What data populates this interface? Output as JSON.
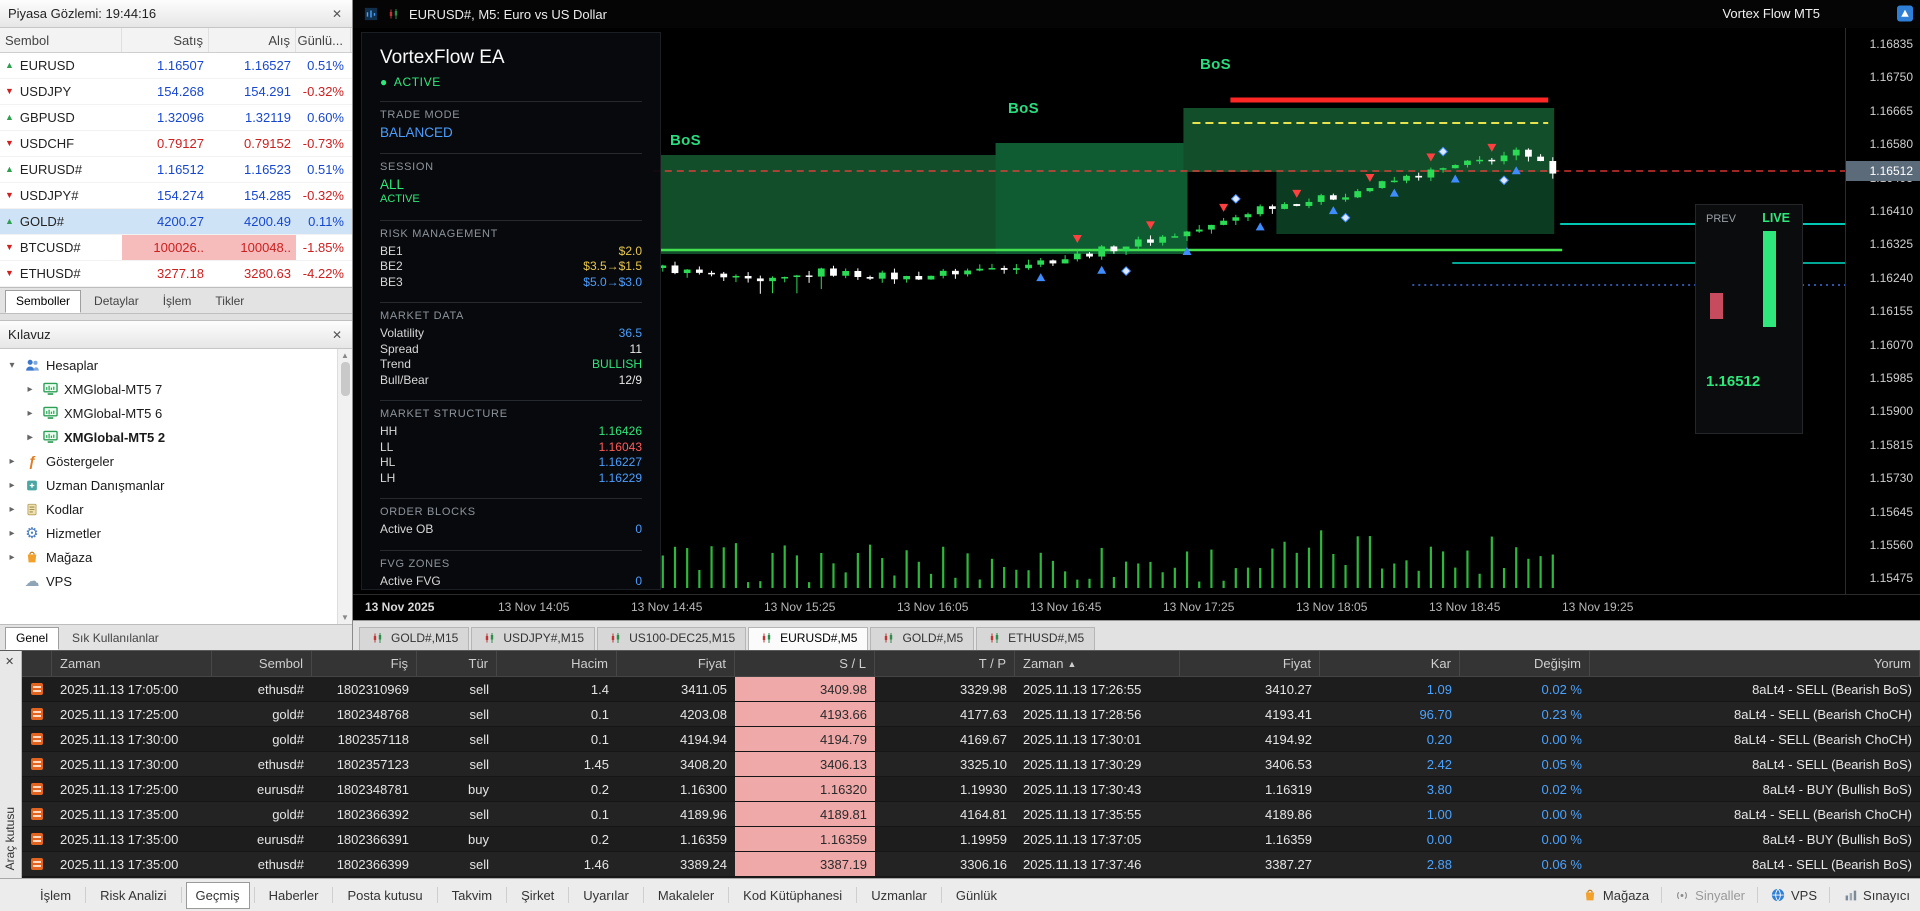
{
  "icons": {
    "close": "✕",
    "sort_asc": "▲",
    "tick_up": "▲",
    "tick_down": "▼",
    "expander_open": "▾",
    "expander_closed": "▸",
    "bullet": "●",
    "gear": "⚙",
    "cloud": "☁",
    "func": "ƒ",
    "scroll_up": "▲",
    "scroll_down": "▼"
  },
  "market_watch": {
    "title": "Piyasa Gözlemi: 19:44:16",
    "columns": [
      "Sembol",
      "Satış",
      "Alış",
      "Günlü..."
    ],
    "rows": [
      {
        "symbol": "EURUSD",
        "bid": "1.16507",
        "ask": "1.16527",
        "change": "0.51%",
        "dir": "up",
        "price_color": "blue",
        "change_color": "blue"
      },
      {
        "symbol": "USDJPY",
        "bid": "154.268",
        "ask": "154.291",
        "change": "-0.32%",
        "dir": "down",
        "price_color": "blue",
        "change_color": "red"
      },
      {
        "symbol": "GBPUSD",
        "bid": "1.32096",
        "ask": "1.32119",
        "change": "0.60%",
        "dir": "up",
        "price_color": "blue",
        "change_color": "blue"
      },
      {
        "symbol": "USDCHF",
        "bid": "0.79127",
        "ask": "0.79152",
        "change": "-0.73%",
        "dir": "down",
        "price_color": "red",
        "change_color": "red"
      },
      {
        "symbol": "EURUSD#",
        "bid": "1.16512",
        "ask": "1.16523",
        "change": "0.51%",
        "dir": "up",
        "price_color": "blue",
        "change_color": "blue"
      },
      {
        "symbol": "USDJPY#",
        "bid": "154.274",
        "ask": "154.285",
        "change": "-0.32%",
        "dir": "down",
        "price_color": "blue",
        "change_color": "red"
      },
      {
        "symbol": "GOLD#",
        "bid": "4200.27",
        "ask": "4200.49",
        "change": "0.11%",
        "dir": "up",
        "price_color": "blue",
        "change_color": "blue",
        "selected": true
      },
      {
        "symbol": "BTCUSD#",
        "bid": "100026..",
        "ask": "100048..",
        "change": "-1.85%",
        "dir": "down",
        "price_color": "red",
        "change_color": "red",
        "flash": true
      },
      {
        "symbol": "ETHUSD#",
        "bid": "3277.18",
        "ask": "3280.63",
        "change": "-4.22%",
        "dir": "down",
        "price_color": "red",
        "change_color": "red"
      }
    ],
    "tabs": [
      "Semboller",
      "Detaylar",
      "İşlem",
      "Tikler"
    ],
    "active_tab": "Semboller"
  },
  "navigator": {
    "title": "Kılavuz",
    "items": [
      {
        "label": "Hesaplar",
        "depth": 0,
        "exp": "open",
        "icon": "accounts"
      },
      {
        "label": "XMGlobal-MT5 7",
        "depth": 1,
        "exp": "closed",
        "icon": "terminal"
      },
      {
        "label": "XMGlobal-MT5 6",
        "depth": 1,
        "exp": "closed",
        "icon": "terminal"
      },
      {
        "label": "XMGlobal-MT5 2",
        "depth": 1,
        "exp": "closed",
        "icon": "terminal",
        "bold": true
      },
      {
        "label": "Göstergeler",
        "depth": 0,
        "exp": "closed",
        "icon": "indicators"
      },
      {
        "label": "Uzman Danışmanlar",
        "depth": 0,
        "exp": "closed",
        "icon": "experts"
      },
      {
        "label": "Kodlar",
        "depth": 0,
        "exp": "closed",
        "icon": "scripts"
      },
      {
        "label": "Hizmetler",
        "depth": 0,
        "exp": "closed",
        "icon": "services"
      },
      {
        "label": "Mağaza",
        "depth": 0,
        "exp": "closed",
        "icon": "store"
      },
      {
        "label": "VPS",
        "depth": 0,
        "exp": "none",
        "icon": "vps_nav"
      }
    ],
    "tabs": [
      "Genel",
      "Sık Kullanılanlar"
    ],
    "active_tab": "Genel"
  },
  "chart": {
    "header_title": "EURUSD#, M5:  Euro vs US Dollar",
    "watermark": "Vortex Flow MT5",
    "bos": [
      "BoS",
      "BoS",
      "BoS"
    ],
    "current_price": "1.16512",
    "price_labels": [
      "1.16835",
      "1.16750",
      "1.16665",
      "1.16580",
      "1.16495",
      "1.16410",
      "1.16325",
      "1.16240",
      "1.16155",
      "1.16070",
      "1.15985",
      "1.15900",
      "1.15815",
      "1.15730",
      "1.15645",
      "1.15560",
      "1.15475"
    ],
    "time_labels": [
      "13 Nov 2025",
      "13 Nov 14:05",
      "13 Nov 14:45",
      "13 Nov 15:25",
      "13 Nov 16:05",
      "13 Nov 16:45",
      "13 Nov 17:25",
      "13 Nov 18:05",
      "13 Nov 18:45",
      "13 Nov 19:25"
    ],
    "gauge": {
      "prev_label": "PREV",
      "live_label": "LIVE",
      "value": "1.16512"
    },
    "tabs": [
      "GOLD#,M15",
      "USDJPY#,M15",
      "US100-DEC25,M15",
      "EURUSD#,M5",
      "GOLD#,M5",
      "ETHUSD#,M5"
    ],
    "active_tab": "EURUSD#,M5"
  },
  "ea_panel": {
    "title": "VortexFlow EA",
    "status": "ACTIVE",
    "sections": [
      {
        "header": "TRADE MODE",
        "rows": [
          {
            "value": "BALANCED",
            "color": "blue",
            "size": "big"
          }
        ]
      },
      {
        "header": "SESSION",
        "rows": [
          {
            "value": "ALL",
            "color": "green",
            "size": "big"
          },
          {
            "value": "ACTIVE",
            "color": "green",
            "size": "small"
          }
        ]
      },
      {
        "header": "RISK MANAGEMENT",
        "rows": [
          {
            "label": "BE1",
            "value": "$2.0",
            "color": "yellow"
          },
          {
            "label": "BE2",
            "value": "$3.5→$1.5",
            "color": "yellow"
          },
          {
            "label": "BE3",
            "value": "$5.0→$3.0",
            "color": "blue"
          }
        ]
      },
      {
        "header": "MARKET DATA",
        "rows": [
          {
            "label": "Volatility",
            "value": "36.5",
            "color": "blue"
          },
          {
            "label": "Spread",
            "value": "11",
            "color": "white"
          },
          {
            "label": "Trend",
            "value": "BULLISH",
            "color": "green"
          },
          {
            "label": "Bull/Bear",
            "value": "12/9",
            "color": "white"
          }
        ]
      },
      {
        "header": "MARKET STRUCTURE",
        "rows": [
          {
            "label": "HH",
            "value": "1.16426",
            "color": "green"
          },
          {
            "label": "LL",
            "value": "1.16043",
            "color": "red"
          },
          {
            "label": "HL",
            "value": "1.16227",
            "color": "blue"
          },
          {
            "label": "LH",
            "value": "1.16229",
            "color": "blue"
          }
        ]
      },
      {
        "header": "ORDER BLOCKS",
        "rows": [
          {
            "label": "Active OB",
            "value": "0",
            "color": "blue"
          }
        ]
      },
      {
        "header": "FVG ZONES",
        "rows": [
          {
            "label": "Active FVG",
            "value": "0",
            "color": "blue"
          }
        ]
      }
    ]
  },
  "toolbox": {
    "side_label": "Araç kutusu",
    "columns": [
      "Zaman",
      "Sembol",
      "Fiş",
      "Tür",
      "Hacim",
      "Fiyat",
      "S / L",
      "T / P",
      "Zaman",
      "Fiyat",
      "Kar",
      "Değişim",
      "Yorum"
    ],
    "sort_column": 8,
    "rows": [
      [
        "2025.11.13 17:05:00",
        "ethusd#",
        "1802310969",
        "sell",
        "1.4",
        "3411.05",
        "3409.98",
        "3329.98",
        "2025.11.13 17:26:55",
        "3410.27",
        "1.09",
        "0.02 %",
        "8aLt4 - SELL (Bearish BoS)"
      ],
      [
        "2025.11.13 17:25:00",
        "gold#",
        "1802348768",
        "sell",
        "0.1",
        "4203.08",
        "4193.66",
        "4177.63",
        "2025.11.13 17:28:56",
        "4193.41",
        "96.70",
        "0.23 %",
        "8aLt4 - SELL (Bearish ChoCH)"
      ],
      [
        "2025.11.13 17:30:00",
        "gold#",
        "1802357118",
        "sell",
        "0.1",
        "4194.94",
        "4194.79",
        "4169.67",
        "2025.11.13 17:30:01",
        "4194.92",
        "0.20",
        "0.00 %",
        "8aLt4 - SELL (Bearish ChoCH)"
      ],
      [
        "2025.11.13 17:30:00",
        "ethusd#",
        "1802357123",
        "sell",
        "1.45",
        "3408.20",
        "3406.13",
        "3325.10",
        "2025.11.13 17:30:29",
        "3406.53",
        "2.42",
        "0.05 %",
        "8aLt4 - SELL (Bearish BoS)"
      ],
      [
        "2025.11.13 17:25:00",
        "eurusd#",
        "1802348781",
        "buy",
        "0.2",
        "1.16300",
        "1.16320",
        "1.19930",
        "2025.11.13 17:30:43",
        "1.16319",
        "3.80",
        "0.02 %",
        "8aLt4 - BUY (Bullish BoS)"
      ],
      [
        "2025.11.13 17:35:00",
        "gold#",
        "1802366392",
        "sell",
        "0.1",
        "4189.96",
        "4189.81",
        "4164.81",
        "2025.11.13 17:35:55",
        "4189.86",
        "1.00",
        "0.00 %",
        "8aLt4 - SELL (Bearish ChoCH)"
      ],
      [
        "2025.11.13 17:35:00",
        "eurusd#",
        "1802366391",
        "buy",
        "0.2",
        "1.16359",
        "1.16359",
        "1.19959",
        "2025.11.13 17:37:05",
        "1.16359",
        "0.00",
        "0.00 %",
        "8aLt4 - BUY (Bullish BoS)"
      ],
      [
        "2025.11.13 17:35:00",
        "ethusd#",
        "1802366399",
        "sell",
        "1.46",
        "3389.24",
        "3387.19",
        "3306.16",
        "2025.11.13 17:37:46",
        "3387.27",
        "2.88",
        "0.06 %",
        "8aLt4 - SELL (Bearish BoS)"
      ]
    ]
  },
  "statusbar": {
    "tabs": [
      "İşlem",
      "Risk Analizi",
      "Geçmiş",
      "Haberler",
      "Posta kutusu",
      "Takvim",
      "Şirket",
      "Uyarılar",
      "Makaleler",
      "Kod Kütüphanesi",
      "Uzmanlar",
      "Günlük"
    ],
    "active_tab": "Geçmiş",
    "right_items": [
      {
        "label": "Mağaza",
        "icon": "store"
      },
      {
        "label": "Sinyaller",
        "icon": "signals",
        "dim": true
      },
      {
        "label": "VPS",
        "icon": "vps"
      },
      {
        "label": "Sınayıcı",
        "icon": "tester"
      }
    ]
  },
  "colors": {
    "bull": "#2bdb55",
    "bear": "#ff4040",
    "accent_blue": "#4a9eff",
    "accent_green": "#2ee87c",
    "accent_yellow": "#e8c84a",
    "accent_red": "#ff5b5b",
    "zone_green": "#134e2b",
    "quote_blue": "#1747cf",
    "quote_red": "#cc2020"
  }
}
